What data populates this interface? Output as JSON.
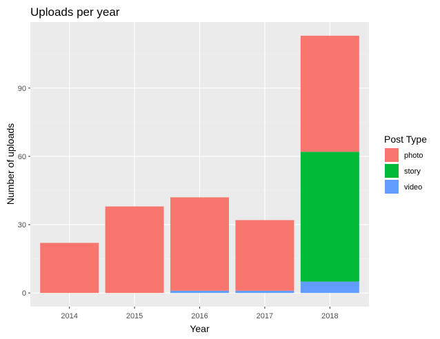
{
  "chart_data": {
    "type": "bar",
    "stacked": true,
    "title": "Uploads per year",
    "xlabel": "Year",
    "ylabel": "Number of uploads",
    "categories": [
      "2014",
      "2015",
      "2016",
      "2017",
      "2018"
    ],
    "series": [
      {
        "name": "video",
        "values": [
          0,
          0,
          1,
          1,
          5
        ],
        "color": "#619CFF"
      },
      {
        "name": "story",
        "values": [
          0,
          0,
          0,
          0,
          57
        ],
        "color": "#00BA38"
      },
      {
        "name": "photo",
        "values": [
          22,
          38,
          41,
          31,
          51
        ],
        "color": "#F8766D"
      }
    ],
    "ylim": [
      -6,
      119
    ],
    "yticks": [
      0,
      30,
      60,
      90
    ],
    "grid": true,
    "background": "#EBEBEB",
    "legend": {
      "title": "Post Type",
      "position": "right",
      "items": [
        "photo",
        "story",
        "video"
      ]
    }
  }
}
